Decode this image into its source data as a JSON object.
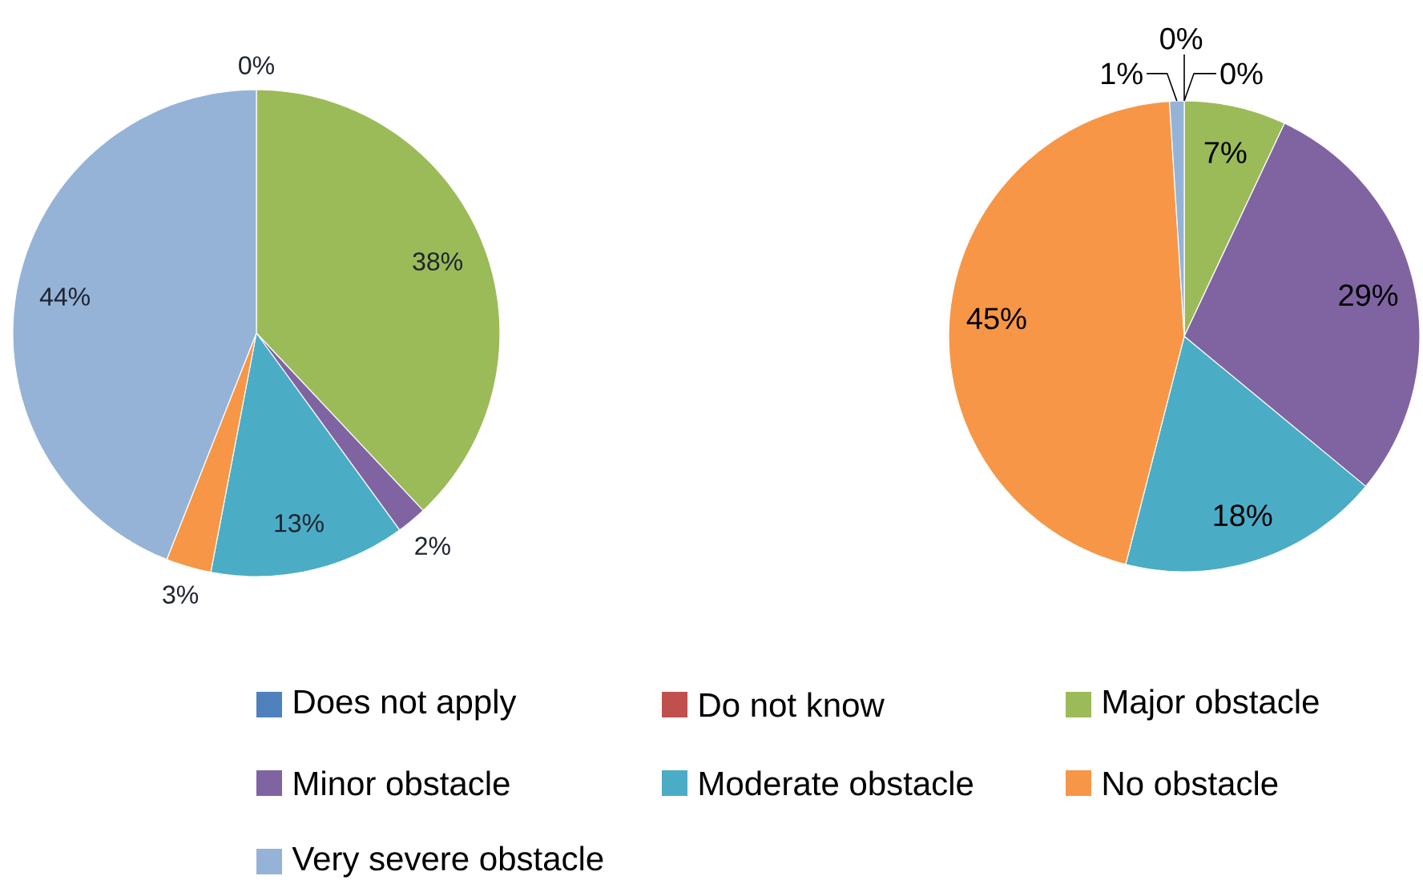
{
  "chart_data": [
    {
      "type": "pie",
      "categories": [
        "Does not apply",
        "Do not know",
        "Major obstacle",
        "Minor obstacle",
        "Moderate obstacle",
        "No obstacle",
        "Very severe obstacle"
      ],
      "values": [
        null,
        0,
        38,
        2,
        13,
        3,
        44
      ],
      "value_labels": [
        null,
        "0%",
        "38%",
        "2%",
        "13%",
        "3%",
        "44%"
      ],
      "colors": [
        "#4f81bd",
        "#c0504d",
        "#9bbb59",
        "#8064a2",
        "#4bacc6",
        "#f79646",
        "#95b3d7"
      ],
      "legend": "bottom"
    },
    {
      "type": "pie",
      "categories": [
        null,
        null,
        null,
        null,
        null,
        null,
        null
      ],
      "values": [
        0,
        0,
        7,
        29,
        18,
        45,
        1
      ],
      "value_labels": [
        "0%",
        "0%",
        "7%",
        "29%",
        "18%",
        "45%",
        "1%"
      ],
      "colors": [
        "#4f81bd",
        "#c0504d",
        "#9bbb59",
        "#8064a2",
        "#4bacc6",
        "#f79646",
        "#95b3d7"
      ]
    }
  ]
}
